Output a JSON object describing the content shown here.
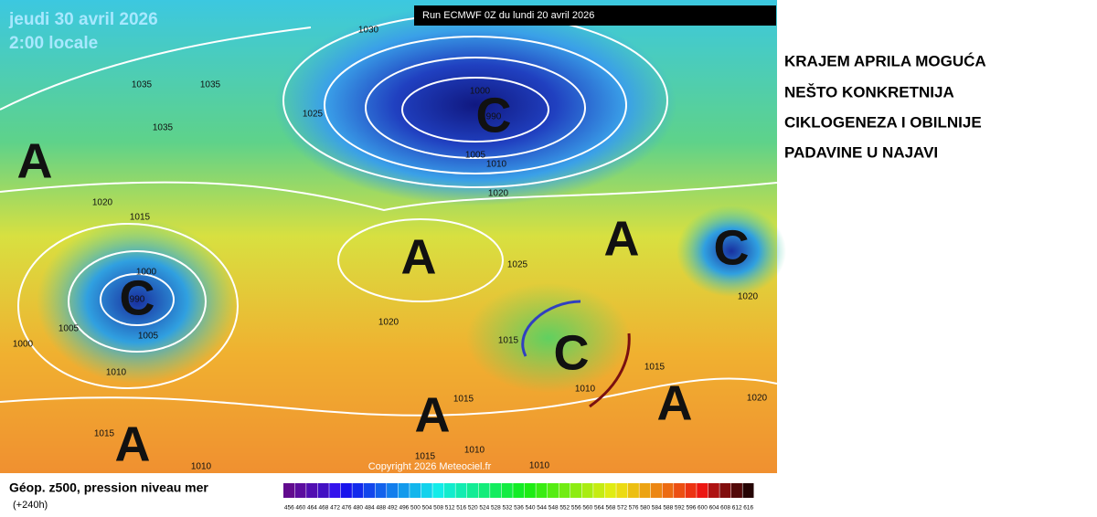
{
  "map": {
    "date": "jeudi 30 avril 2026",
    "time": "2:00 locale",
    "run": "Run ECMWF 0Z du lundi 20 avril 2026",
    "copyright": "Copyright 2026 Meteociel.fr",
    "systems": [
      "A",
      "C",
      "A",
      "A",
      "C",
      "C",
      "C",
      "A",
      "A",
      "A"
    ],
    "isobars": [
      1030,
      1035,
      1035,
      1035,
      1025,
      1000,
      990,
      1005,
      1010,
      1020,
      1020,
      1015,
      1000,
      990,
      1005,
      1005,
      1000,
      1010,
      1025,
      1020,
      1015,
      1015,
      1010,
      1015,
      1020,
      1020,
      1015,
      1015,
      1010,
      1010,
      1010
    ]
  },
  "legend": {
    "title": "Géop. z500, pression niveau mer",
    "subtitle": "(+240h)",
    "scale": [
      456,
      460,
      464,
      468,
      472,
      476,
      480,
      484,
      488,
      492,
      496,
      500,
      504,
      508,
      512,
      516,
      520,
      524,
      528,
      532,
      536,
      540,
      544,
      548,
      552,
      556,
      560,
      564,
      568,
      572,
      576,
      580,
      584,
      588,
      592,
      596,
      600,
      604,
      608,
      612,
      616
    ]
  },
  "headline": [
    "KRAJEM APRILA MOGUĆA",
    "NEŠTO KONKRETNIJA",
    "CIKLOGENEZA I OBILNIJE",
    "PADAVINE U NAJAVI"
  ]
}
